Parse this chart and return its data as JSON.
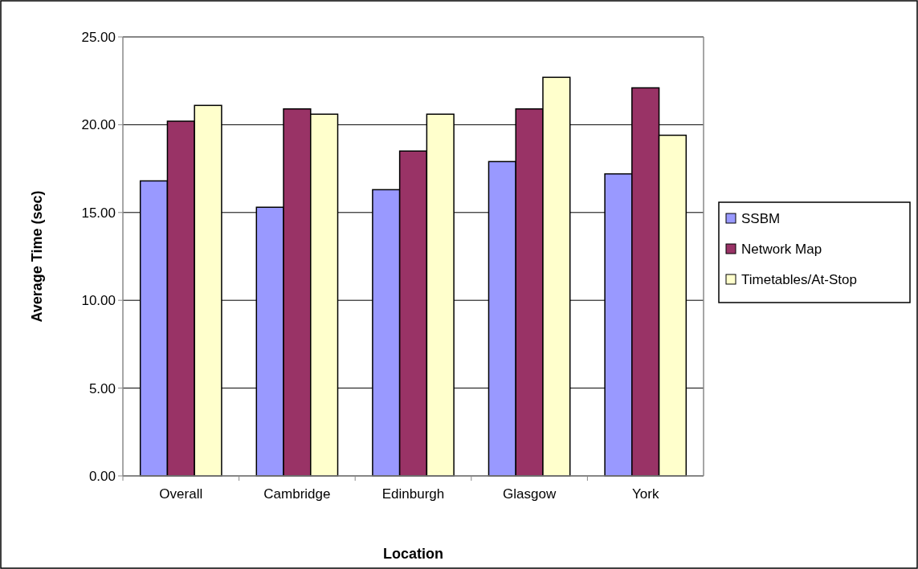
{
  "chart_data": {
    "type": "bar",
    "xlabel": "Location",
    "ylabel": "Average Time (sec)",
    "categories": [
      "Overall",
      "Cambridge",
      "Edinburgh",
      "Glasgow",
      "York"
    ],
    "series": [
      {
        "name": "SSBM",
        "color": "#9999ff",
        "values": [
          16.8,
          15.3,
          16.3,
          17.9,
          17.2
        ]
      },
      {
        "name": "Network Map",
        "color": "#993366",
        "values": [
          20.2,
          20.9,
          18.5,
          20.9,
          22.1
        ]
      },
      {
        "name": "Timetables/At-Stop",
        "color": "#ffffcc",
        "values": [
          21.1,
          20.6,
          20.6,
          22.7,
          19.4
        ]
      }
    ],
    "ylim": [
      0,
      25
    ],
    "yticks": [
      {
        "value": 0,
        "label": "0.00"
      },
      {
        "value": 5,
        "label": "5.00"
      },
      {
        "value": 10,
        "label": "10.00"
      },
      {
        "value": 15,
        "label": "15.00"
      },
      {
        "value": 20,
        "label": "20.00"
      },
      {
        "value": 25,
        "label": "25.00"
      }
    ],
    "grid": "y",
    "legend": "right"
  }
}
